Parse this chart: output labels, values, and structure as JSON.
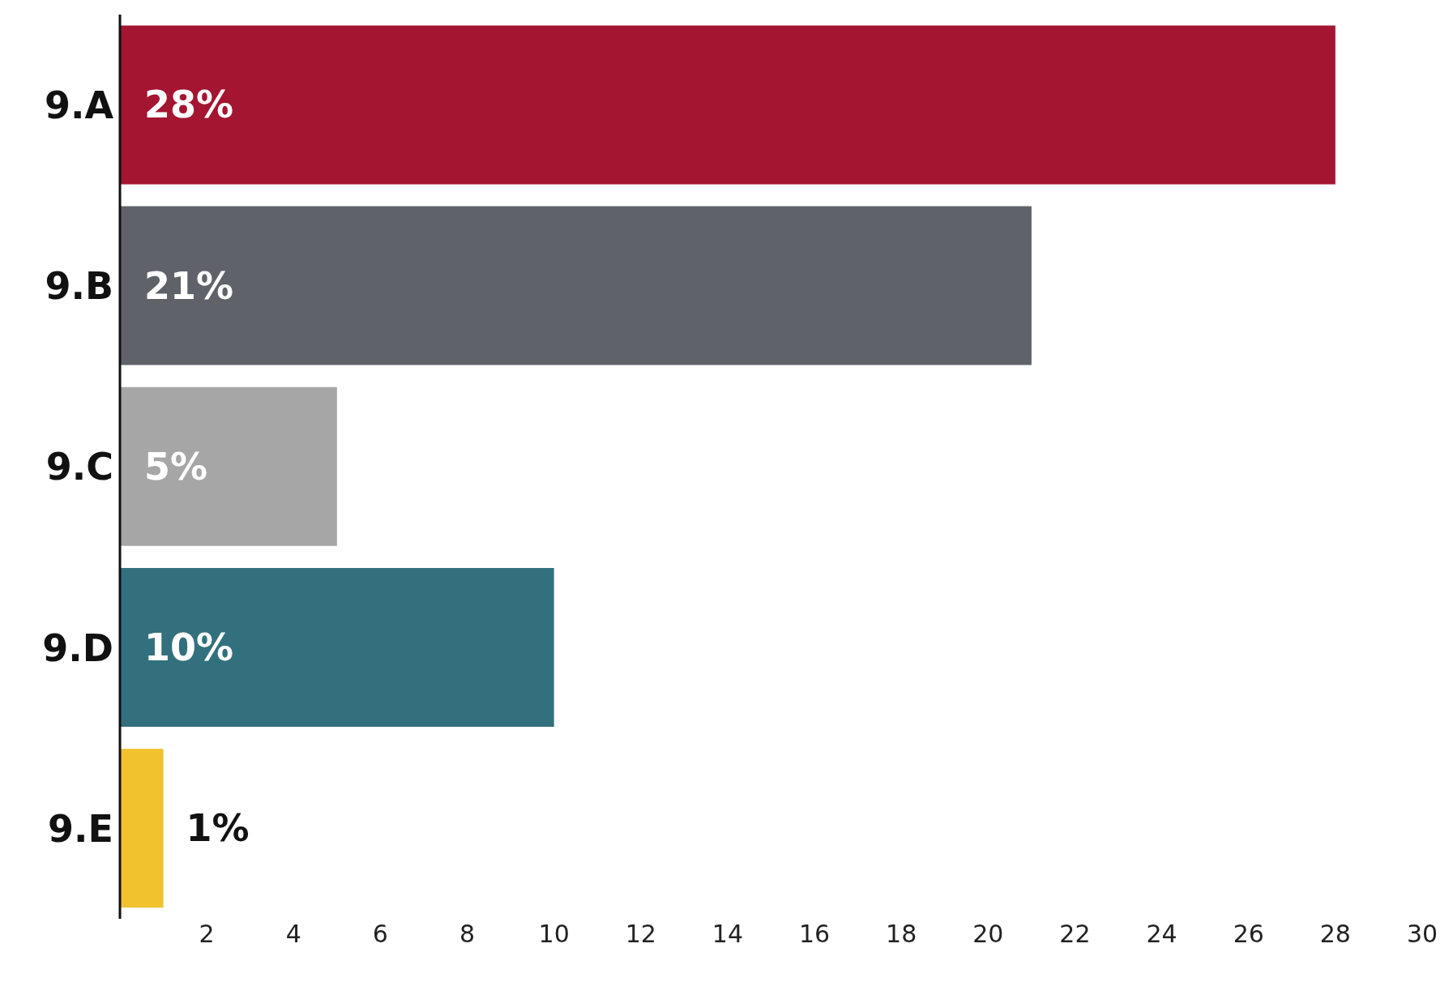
{
  "chart_data": {
    "type": "bar",
    "orientation": "horizontal",
    "categories": [
      "9.A",
      "9.B",
      "9.C",
      "9.D",
      "9.E"
    ],
    "values": [
      28,
      21,
      5,
      10,
      1
    ],
    "colors": [
      "#a31530",
      "#5f6268",
      "#a6a6a6",
      "#33707e",
      "#f2c12e"
    ],
    "value_labels": [
      "28%",
      "21%",
      "5%",
      "10%",
      "1%"
    ],
    "xlim": [
      0,
      30
    ],
    "xticks": [
      2,
      4,
      6,
      8,
      10,
      12,
      14,
      16,
      18,
      20,
      22,
      24,
      26,
      28,
      30
    ]
  }
}
